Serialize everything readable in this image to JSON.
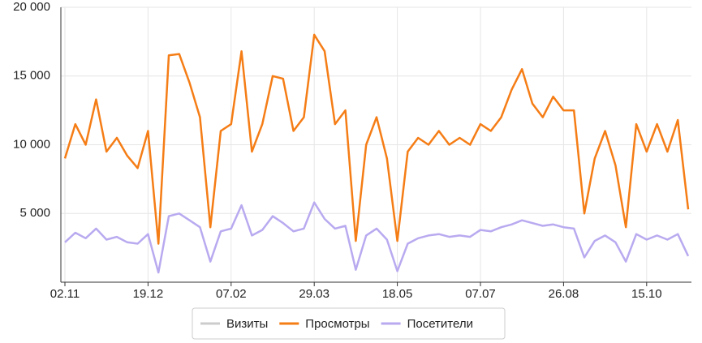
{
  "chart_data": {
    "type": "line",
    "categories": [
      "02.11",
      null,
      null,
      null,
      null,
      null,
      null,
      null,
      "19.12",
      null,
      null,
      null,
      null,
      null,
      null,
      null,
      "07.02",
      null,
      null,
      null,
      null,
      null,
      null,
      null,
      "29.03",
      null,
      null,
      null,
      null,
      null,
      null,
      null,
      "18.05",
      null,
      null,
      null,
      null,
      null,
      null,
      null,
      "07.07",
      null,
      null,
      null,
      null,
      null,
      null,
      null,
      "26.08",
      null,
      null,
      null,
      null,
      null,
      null,
      null,
      "15.10",
      null,
      null,
      null,
      null
    ],
    "series": [
      {
        "name": "Просмотры",
        "color": "#f57d16",
        "values": [
          9000,
          11500,
          10000,
          13300,
          9500,
          10500,
          9200,
          8300,
          11000,
          2800,
          16500,
          16600,
          14500,
          12000,
          4000,
          11000,
          11500,
          16800,
          9500,
          11500,
          15000,
          14800,
          11000,
          12000,
          18000,
          16800,
          11500,
          12500,
          3000,
          10000,
          12000,
          9000,
          3000,
          9500,
          10500,
          10000,
          11000,
          10000,
          10500,
          10000,
          11500,
          11000,
          12000,
          14000,
          15500,
          13000,
          12000,
          13500,
          12500,
          12500,
          5000,
          9000,
          11000,
          8500,
          4000,
          11500,
          9500,
          11500,
          9500,
          11800,
          5300
        ]
      },
      {
        "name": "Посетители",
        "color": "#b9aaf0",
        "values": [
          2900,
          3600,
          3200,
          3900,
          3100,
          3300,
          2900,
          2800,
          3500,
          700,
          4800,
          5000,
          4500,
          4000,
          1500,
          3700,
          3900,
          5600,
          3400,
          3800,
          4800,
          4300,
          3700,
          3900,
          5800,
          4600,
          3900,
          4100,
          900,
          3400,
          3900,
          3100,
          800,
          2800,
          3200,
          3400,
          3500,
          3300,
          3400,
          3300,
          3800,
          3700,
          4000,
          4200,
          4500,
          4300,
          4100,
          4200,
          4000,
          3900,
          1800,
          3000,
          3400,
          2900,
          1500,
          3500,
          3100,
          3400,
          3100,
          3500,
          1900
        ]
      }
    ],
    "hidden_series": [
      {
        "name": "Визиты",
        "color": "#cccccc"
      }
    ],
    "ylim": [
      0,
      20000
    ],
    "yticks": [
      {
        "value": 5000,
        "label": "5 000"
      },
      {
        "value": 10000,
        "label": "10 000"
      },
      {
        "value": 15000,
        "label": "15 000"
      },
      {
        "value": 20000,
        "label": "20 000"
      }
    ],
    "grid": true
  }
}
